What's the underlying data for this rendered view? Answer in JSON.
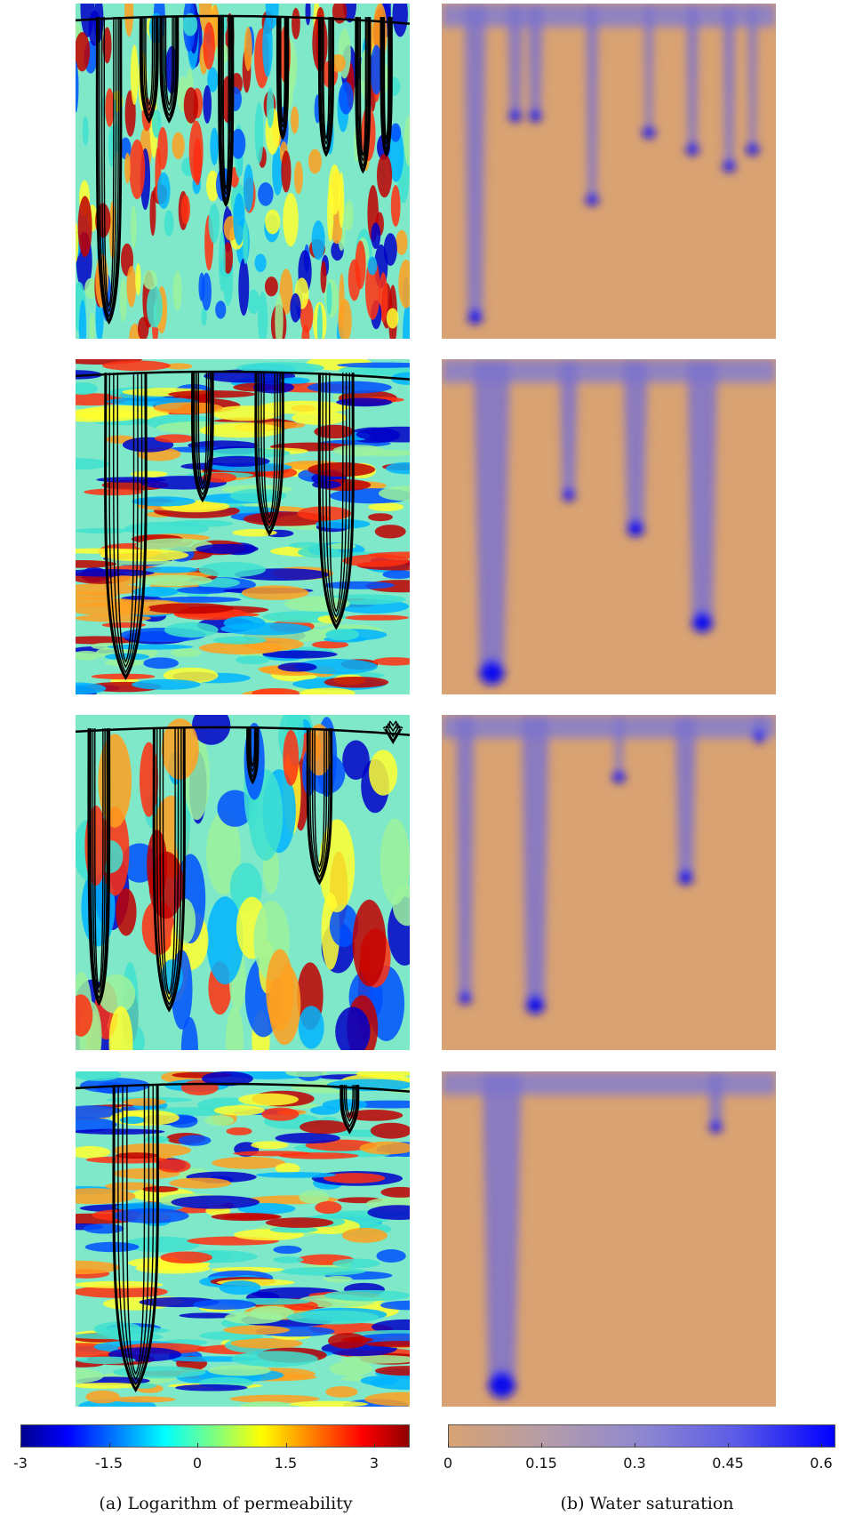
{
  "figure": {
    "left_column_caption": "(a) Logarithm of permeability",
    "right_column_caption": "(b) Water saturation",
    "rows": [
      {
        "permeability_texture": "vertical-streaks",
        "fingers": 8
      },
      {
        "permeability_texture": "horizontal-layers",
        "fingers": 4
      },
      {
        "permeability_texture": "vertical-blobs",
        "fingers": 5
      },
      {
        "permeability_texture": "horizontal-layers",
        "fingers": 2
      }
    ]
  },
  "colorbars": {
    "permeability": {
      "colormap": "jet",
      "range": [
        -3,
        3
      ],
      "ticks": [
        "-3",
        "-1.5",
        "0",
        "1.5",
        "3"
      ]
    },
    "saturation": {
      "colormap": "tan-to-blue",
      "range": [
        0,
        0.6
      ],
      "ticks": [
        "0",
        "0.15",
        "0.3",
        "0.45",
        "0.6"
      ]
    }
  },
  "colors": {
    "saturation_low": "#d8a273",
    "saturation_high": "#1010ee",
    "contour": "#000000"
  }
}
